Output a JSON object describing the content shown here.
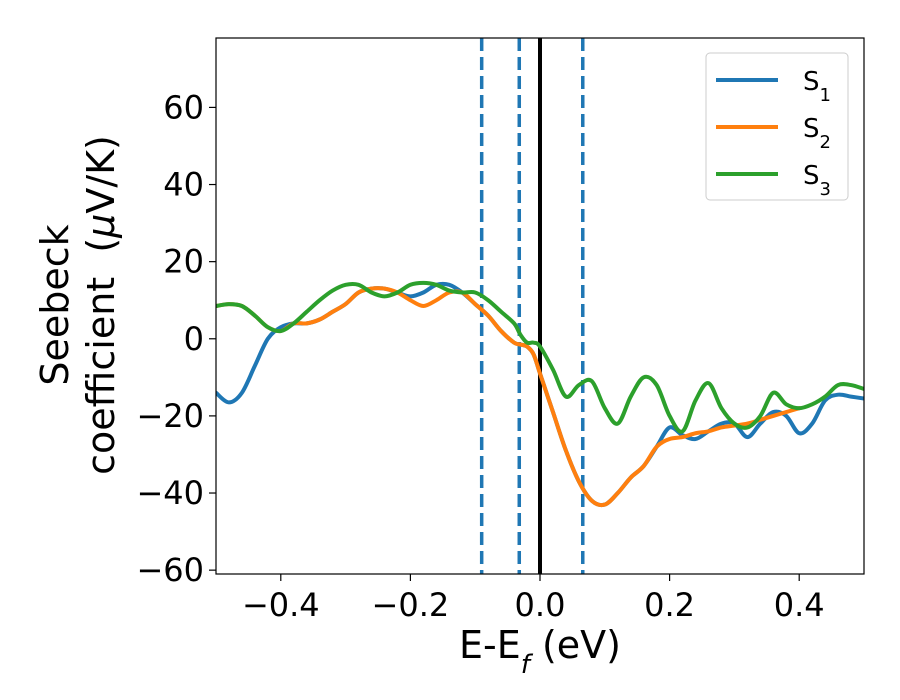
{
  "chart_data": {
    "type": "line",
    "title": "",
    "xlabel": {
      "main": "E-E",
      "sub": "f",
      "suffix": " (eV)"
    },
    "ylabel": {
      "line1": "Seebeck",
      "line2_prefix": "coefficient  (",
      "line2_mu": "μ",
      "line2_suffix": "V/K)"
    },
    "xlim": [
      -0.5,
      0.5
    ],
    "ylim": [
      -61,
      78
    ],
    "grid": false,
    "legend_position": "top-right",
    "x_ticks": [
      {
        "value": -0.4,
        "label": "−0.4"
      },
      {
        "value": -0.2,
        "label": "−0.2"
      },
      {
        "value": 0.0,
        "label": "0.0"
      },
      {
        "value": 0.2,
        "label": "0.2"
      },
      {
        "value": 0.4,
        "label": "0.4"
      }
    ],
    "y_ticks": [
      {
        "value": -60,
        "label": "−60"
      },
      {
        "value": -40,
        "label": "−40"
      },
      {
        "value": -20,
        "label": "−20"
      },
      {
        "value": 0,
        "label": "0"
      },
      {
        "value": 20,
        "label": "20"
      },
      {
        "value": 40,
        "label": "40"
      },
      {
        "value": 60,
        "label": "60"
      }
    ],
    "vertical_lines": [
      {
        "x": -0.09,
        "style": "dashed",
        "color": "#1f77b4"
      },
      {
        "x": -0.032,
        "style": "dashed",
        "color": "#1f77b4"
      },
      {
        "x": 0.0,
        "style": "solid",
        "color": "#000000"
      },
      {
        "x": 0.066,
        "style": "dashed",
        "color": "#1f77b4"
      }
    ],
    "series": [
      {
        "name": "S",
        "subscript": "1",
        "color": "#1f77b4",
        "x": [
          -0.5,
          -0.48,
          -0.46,
          -0.44,
          -0.42,
          -0.4,
          -0.38,
          -0.36,
          -0.34,
          -0.32,
          -0.3,
          -0.28,
          -0.26,
          -0.24,
          -0.22,
          -0.2,
          -0.18,
          -0.16,
          -0.14,
          -0.12,
          -0.1,
          -0.08,
          -0.06,
          -0.04,
          -0.03,
          -0.02,
          -0.01,
          0.0,
          0.02,
          0.04,
          0.06,
          0.08,
          0.1,
          0.12,
          0.14,
          0.16,
          0.18,
          0.2,
          0.22,
          0.24,
          0.26,
          0.28,
          0.3,
          0.32,
          0.34,
          0.36,
          0.38,
          0.4,
          0.42,
          0.44,
          0.46,
          0.48,
          0.5
        ],
        "y": [
          -14,
          -16.5,
          -14,
          -7,
          0,
          3,
          4,
          4,
          5,
          7,
          9,
          12,
          13,
          13,
          12,
          11,
          12,
          14,
          14,
          12,
          9,
          6,
          2,
          -1,
          -1.5,
          -2,
          -4,
          -9,
          -19,
          -29,
          -37,
          -42,
          -43,
          -40,
          -36,
          -33,
          -28,
          -23,
          -25,
          -26,
          -24,
          -22,
          -22,
          -25.5,
          -22,
          -19,
          -20,
          -24.5,
          -22,
          -16,
          -14.5,
          -15,
          -15.5
        ]
      },
      {
        "name": "S",
        "subscript": "2",
        "color": "#ff7f0e",
        "x": [
          -0.5,
          -0.48,
          -0.46,
          -0.44,
          -0.42,
          -0.4,
          -0.38,
          -0.36,
          -0.34,
          -0.32,
          -0.3,
          -0.28,
          -0.26,
          -0.24,
          -0.22,
          -0.2,
          -0.18,
          -0.16,
          -0.14,
          -0.12,
          -0.1,
          -0.08,
          -0.06,
          -0.04,
          -0.03,
          -0.02,
          -0.01,
          0.0,
          0.02,
          0.04,
          0.06,
          0.08,
          0.1,
          0.12,
          0.14,
          0.16,
          0.18,
          0.2,
          0.22,
          0.24,
          0.26,
          0.28,
          0.3,
          0.32,
          0.34,
          0.36,
          0.38,
          0.4
        ],
        "y": [
          8.5,
          9,
          8.5,
          6,
          3,
          2,
          4,
          4,
          5,
          7,
          9,
          12,
          13,
          13,
          12,
          10,
          8.5,
          10,
          12,
          12,
          9,
          6,
          2,
          -1,
          -1.5,
          -2,
          -4,
          -9,
          -19,
          -29,
          -37,
          -42,
          -43,
          -40,
          -36,
          -33,
          -28,
          -26,
          -25.5,
          -24.5,
          -24,
          -23,
          -22.5,
          -22,
          -21,
          -20,
          -19,
          -18
        ]
      },
      {
        "name": "S",
        "subscript": "3",
        "color": "#2ca02c",
        "x": [
          -0.5,
          -0.48,
          -0.46,
          -0.44,
          -0.42,
          -0.4,
          -0.38,
          -0.36,
          -0.34,
          -0.32,
          -0.3,
          -0.28,
          -0.26,
          -0.24,
          -0.22,
          -0.2,
          -0.18,
          -0.16,
          -0.14,
          -0.12,
          -0.1,
          -0.08,
          -0.06,
          -0.04,
          -0.03,
          -0.02,
          -0.01,
          0.0,
          0.02,
          0.04,
          0.06,
          0.08,
          0.1,
          0.12,
          0.14,
          0.16,
          0.18,
          0.2,
          0.22,
          0.24,
          0.26,
          0.28,
          0.3,
          0.32,
          0.34,
          0.36,
          0.38,
          0.4,
          0.42,
          0.44,
          0.46,
          0.48,
          0.5
        ],
        "y": [
          8.5,
          9,
          8.5,
          6,
          3,
          2,
          4,
          7,
          10,
          12.5,
          14,
          14,
          12,
          11,
          12,
          14,
          14.5,
          14,
          12.5,
          12,
          12,
          10,
          7,
          4,
          1,
          -1,
          -1,
          -2,
          -8,
          -15,
          -12,
          -11,
          -18,
          -22,
          -15,
          -10,
          -12,
          -20,
          -24,
          -16,
          -11.5,
          -18,
          -22,
          -23,
          -20,
          -14,
          -17,
          -18,
          -17,
          -15,
          -12,
          -12,
          -13
        ]
      }
    ]
  }
}
